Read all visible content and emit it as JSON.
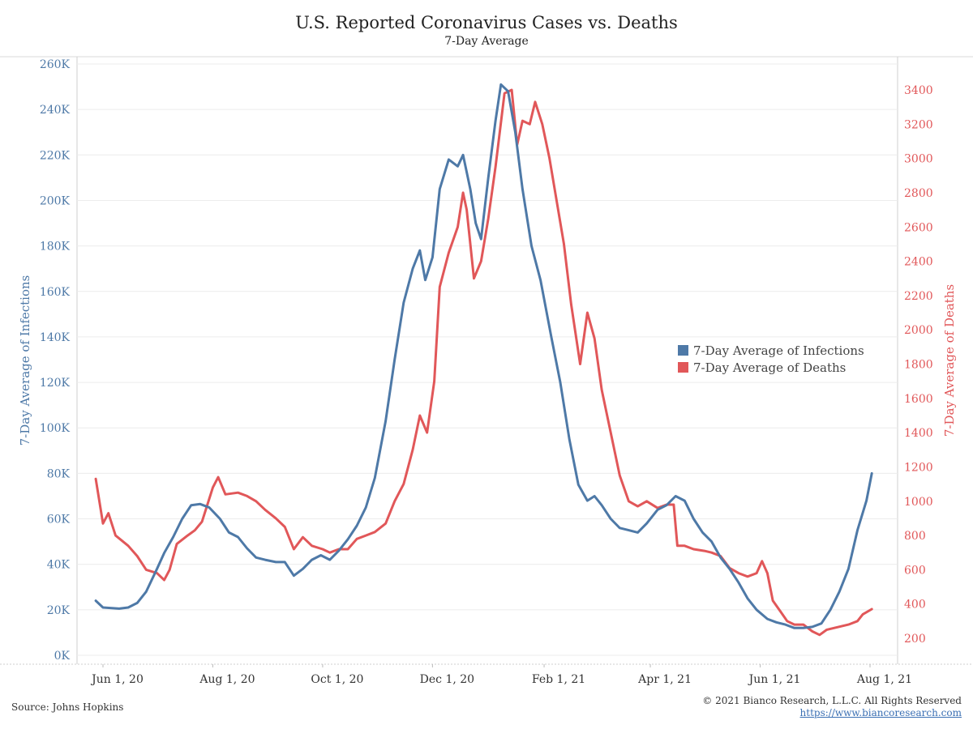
{
  "title": "U.S. Reported Coronavirus Cases vs. Deaths",
  "subtitle": "7-Day Average",
  "source": "Source: Johns Hopkins",
  "copyright": "© 2021 Bianco Research, L.L.C. All Rights Reserved",
  "url": "https://www.biancoresearch.com",
  "colors": {
    "infections": "#4e79a7",
    "deaths": "#e15759"
  },
  "chart_data": {
    "type": "line",
    "x_ticks": [
      "Jun 1, 20",
      "Aug 1, 20",
      "Oct 1, 20",
      "Dec 1, 20",
      "Feb 1, 21",
      "Apr 1, 21",
      "Jun 1, 21",
      "Aug 1, 21"
    ],
    "y_left": {
      "label": "7-Day Average of Infections",
      "range": [
        0,
        260000
      ],
      "ticks": [
        "0K",
        "20K",
        "40K",
        "60K",
        "80K",
        "100K",
        "120K",
        "140K",
        "160K",
        "180K",
        "200K",
        "220K",
        "240K",
        "260K"
      ]
    },
    "y_right": {
      "label": "7-Day Average of Deaths",
      "range": [
        200,
        3400
      ],
      "ticks": [
        "200",
        "400",
        "600",
        "800",
        "1000",
        "1200",
        "1400",
        "1600",
        "1800",
        "2000",
        "2200",
        "2400",
        "2600",
        "2800",
        "3000",
        "3200",
        "3400"
      ]
    },
    "legend": [
      "7-Day Average of Infections",
      "7-Day Average of Deaths"
    ],
    "series": [
      {
        "name": "7-Day Average of Infections",
        "axis": "left",
        "points": [
          [
            "2020-05-28",
            24000
          ],
          [
            "2020-06-01",
            21000
          ],
          [
            "2020-06-10",
            20500
          ],
          [
            "2020-06-15",
            21000
          ],
          [
            "2020-06-20",
            23000
          ],
          [
            "2020-06-25",
            28000
          ],
          [
            "2020-07-01",
            38000
          ],
          [
            "2020-07-05",
            45000
          ],
          [
            "2020-07-10",
            52000
          ],
          [
            "2020-07-15",
            60000
          ],
          [
            "2020-07-20",
            66000
          ],
          [
            "2020-07-25",
            66500
          ],
          [
            "2020-07-30",
            65000
          ],
          [
            "2020-08-05",
            60000
          ],
          [
            "2020-08-10",
            54000
          ],
          [
            "2020-08-15",
            52000
          ],
          [
            "2020-08-20",
            47000
          ],
          [
            "2020-08-25",
            43000
          ],
          [
            "2020-08-30",
            42000
          ],
          [
            "2020-09-05",
            41000
          ],
          [
            "2020-09-10",
            41000
          ],
          [
            "2020-09-15",
            35000
          ],
          [
            "2020-09-20",
            38000
          ],
          [
            "2020-09-25",
            42000
          ],
          [
            "2020-09-30",
            44000
          ],
          [
            "2020-10-05",
            42000
          ],
          [
            "2020-10-10",
            46000
          ],
          [
            "2020-10-15",
            51000
          ],
          [
            "2020-10-20",
            57000
          ],
          [
            "2020-10-25",
            65000
          ],
          [
            "2020-10-30",
            78000
          ],
          [
            "2020-11-05",
            103000
          ],
          [
            "2020-11-10",
            130000
          ],
          [
            "2020-11-15",
            155000
          ],
          [
            "2020-11-20",
            170000
          ],
          [
            "2020-11-24",
            178000
          ],
          [
            "2020-11-27",
            165000
          ],
          [
            "2020-12-01",
            175000
          ],
          [
            "2020-12-05",
            205000
          ],
          [
            "2020-12-10",
            218000
          ],
          [
            "2020-12-15",
            215000
          ],
          [
            "2020-12-18",
            220000
          ],
          [
            "2020-12-22",
            205000
          ],
          [
            "2020-12-25",
            190000
          ],
          [
            "2020-12-28",
            183000
          ],
          [
            "2021-01-01",
            210000
          ],
          [
            "2021-01-05",
            235000
          ],
          [
            "2021-01-08",
            251000
          ],
          [
            "2021-01-12",
            248000
          ],
          [
            "2021-01-16",
            230000
          ],
          [
            "2021-01-20",
            205000
          ],
          [
            "2021-01-25",
            180000
          ],
          [
            "2021-01-30",
            165000
          ],
          [
            "2021-02-05",
            140000
          ],
          [
            "2021-02-10",
            120000
          ],
          [
            "2021-02-15",
            95000
          ],
          [
            "2021-02-20",
            75000
          ],
          [
            "2021-02-25",
            68000
          ],
          [
            "2021-03-01",
            70000
          ],
          [
            "2021-03-05",
            66000
          ],
          [
            "2021-03-10",
            60000
          ],
          [
            "2021-03-15",
            56000
          ],
          [
            "2021-03-20",
            55000
          ],
          [
            "2021-03-25",
            54000
          ],
          [
            "2021-03-30",
            58000
          ],
          [
            "2021-04-05",
            64000
          ],
          [
            "2021-04-10",
            66000
          ],
          [
            "2021-04-15",
            70000
          ],
          [
            "2021-04-20",
            68000
          ],
          [
            "2021-04-25",
            60000
          ],
          [
            "2021-04-30",
            54000
          ],
          [
            "2021-05-05",
            50000
          ],
          [
            "2021-05-10",
            43000
          ],
          [
            "2021-05-15",
            38000
          ],
          [
            "2021-05-20",
            32000
          ],
          [
            "2021-05-25",
            25000
          ],
          [
            "2021-05-30",
            20000
          ],
          [
            "2021-06-05",
            16000
          ],
          [
            "2021-06-10",
            14500
          ],
          [
            "2021-06-15",
            13500
          ],
          [
            "2021-06-20",
            12000
          ],
          [
            "2021-06-25",
            12000
          ],
          [
            "2021-06-30",
            12500
          ],
          [
            "2021-07-05",
            14000
          ],
          [
            "2021-07-10",
            20000
          ],
          [
            "2021-07-15",
            28000
          ],
          [
            "2021-07-20",
            38000
          ],
          [
            "2021-07-25",
            55000
          ],
          [
            "2021-07-30",
            68000
          ],
          [
            "2021-08-02",
            80000
          ]
        ]
      },
      {
        "name": "7-Day Average of Deaths",
        "axis": "right",
        "points": [
          [
            "2020-05-28",
            1130
          ],
          [
            "2020-06-01",
            870
          ],
          [
            "2020-06-04",
            930
          ],
          [
            "2020-06-08",
            800
          ],
          [
            "2020-06-15",
            740
          ],
          [
            "2020-06-20",
            680
          ],
          [
            "2020-06-25",
            600
          ],
          [
            "2020-07-01",
            580
          ],
          [
            "2020-07-05",
            540
          ],
          [
            "2020-07-08",
            600
          ],
          [
            "2020-07-12",
            750
          ],
          [
            "2020-07-18",
            800
          ],
          [
            "2020-07-22",
            830
          ],
          [
            "2020-07-26",
            880
          ],
          [
            "2020-08-01",
            1080
          ],
          [
            "2020-08-04",
            1140
          ],
          [
            "2020-08-08",
            1040
          ],
          [
            "2020-08-15",
            1050
          ],
          [
            "2020-08-20",
            1030
          ],
          [
            "2020-08-25",
            1000
          ],
          [
            "2020-08-30",
            950
          ],
          [
            "2020-09-05",
            900
          ],
          [
            "2020-09-10",
            850
          ],
          [
            "2020-09-15",
            720
          ],
          [
            "2020-09-20",
            790
          ],
          [
            "2020-09-25",
            740
          ],
          [
            "2020-10-01",
            720
          ],
          [
            "2020-10-05",
            700
          ],
          [
            "2020-10-10",
            720
          ],
          [
            "2020-10-15",
            720
          ],
          [
            "2020-10-20",
            780
          ],
          [
            "2020-10-25",
            800
          ],
          [
            "2020-10-30",
            820
          ],
          [
            "2020-11-05",
            870
          ],
          [
            "2020-11-10",
            1000
          ],
          [
            "2020-11-15",
            1100
          ],
          [
            "2020-11-20",
            1300
          ],
          [
            "2020-11-24",
            1500
          ],
          [
            "2020-11-28",
            1400
          ],
          [
            "2020-12-02",
            1700
          ],
          [
            "2020-12-05",
            2250
          ],
          [
            "2020-12-10",
            2450
          ],
          [
            "2020-12-15",
            2600
          ],
          [
            "2020-12-18",
            2800
          ],
          [
            "2020-12-20",
            2700
          ],
          [
            "2020-12-24",
            2300
          ],
          [
            "2020-12-28",
            2400
          ],
          [
            "2021-01-01",
            2650
          ],
          [
            "2021-01-05",
            2950
          ],
          [
            "2021-01-10",
            3380
          ],
          [
            "2021-01-14",
            3400
          ],
          [
            "2021-01-17",
            3080
          ],
          [
            "2021-01-20",
            3220
          ],
          [
            "2021-01-24",
            3200
          ],
          [
            "2021-01-27",
            3330
          ],
          [
            "2021-01-31",
            3200
          ],
          [
            "2021-02-04",
            3000
          ],
          [
            "2021-02-08",
            2750
          ],
          [
            "2021-02-12",
            2500
          ],
          [
            "2021-02-16",
            2150
          ],
          [
            "2021-02-21",
            1800
          ],
          [
            "2021-02-25",
            2100
          ],
          [
            "2021-03-01",
            1950
          ],
          [
            "2021-03-05",
            1650
          ],
          [
            "2021-03-10",
            1400
          ],
          [
            "2021-03-15",
            1150
          ],
          [
            "2021-03-20",
            1000
          ],
          [
            "2021-03-25",
            970
          ],
          [
            "2021-03-30",
            1000
          ],
          [
            "2021-04-05",
            960
          ],
          [
            "2021-04-10",
            980
          ],
          [
            "2021-04-14",
            980
          ],
          [
            "2021-04-16",
            740
          ],
          [
            "2021-04-20",
            740
          ],
          [
            "2021-04-25",
            720
          ],
          [
            "2021-05-01",
            710
          ],
          [
            "2021-05-05",
            700
          ],
          [
            "2021-05-10",
            680
          ],
          [
            "2021-05-15",
            610
          ],
          [
            "2021-05-20",
            580
          ],
          [
            "2021-05-25",
            560
          ],
          [
            "2021-05-30",
            580
          ],
          [
            "2021-06-02",
            650
          ],
          [
            "2021-06-05",
            580
          ],
          [
            "2021-06-08",
            420
          ],
          [
            "2021-06-12",
            360
          ],
          [
            "2021-06-16",
            300
          ],
          [
            "2021-06-20",
            280
          ],
          [
            "2021-06-25",
            280
          ],
          [
            "2021-06-30",
            240
          ],
          [
            "2021-07-04",
            220
          ],
          [
            "2021-07-08",
            250
          ],
          [
            "2021-07-12",
            260
          ],
          [
            "2021-07-16",
            270
          ],
          [
            "2021-07-20",
            280
          ],
          [
            "2021-07-25",
            300
          ],
          [
            "2021-07-28",
            340
          ],
          [
            "2021-08-02",
            370
          ]
        ]
      }
    ]
  }
}
